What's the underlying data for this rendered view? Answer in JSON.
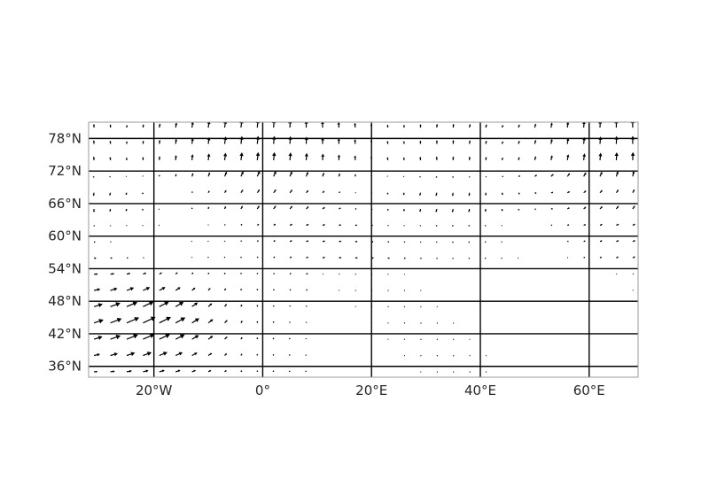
{
  "map": {
    "projection": "plate-carree",
    "extent": {
      "lon": [
        -32,
        69
      ],
      "lat": [
        34,
        81
      ]
    },
    "gridlines": {
      "on": true,
      "color": "#000000"
    },
    "frame_color": "#999999",
    "arrow_color": "#000000",
    "lat_ticks": [
      {
        "value": 36,
        "label": "36°N"
      },
      {
        "value": 42,
        "label": "42°N"
      },
      {
        "value": 48,
        "label": "48°N"
      },
      {
        "value": 54,
        "label": "54°N"
      },
      {
        "value": 60,
        "label": "60°N"
      },
      {
        "value": 66,
        "label": "66°N"
      },
      {
        "value": 72,
        "label": "72°N"
      },
      {
        "value": 78,
        "label": "78°N"
      }
    ],
    "lon_ticks": [
      {
        "value": -20,
        "label": "20°W"
      },
      {
        "value": 0,
        "label": "0°"
      },
      {
        "value": 20,
        "label": "20°E"
      },
      {
        "value": 40,
        "label": "40°E"
      },
      {
        "value": 60,
        "label": "60°E"
      }
    ],
    "vector_field": {
      "type": "quiver",
      "description": "wind vectors on a regular lon/lat grid",
      "grid_step_deg": [
        3.0,
        3.0
      ],
      "lon_start": -31,
      "lat_start": 35
    }
  }
}
